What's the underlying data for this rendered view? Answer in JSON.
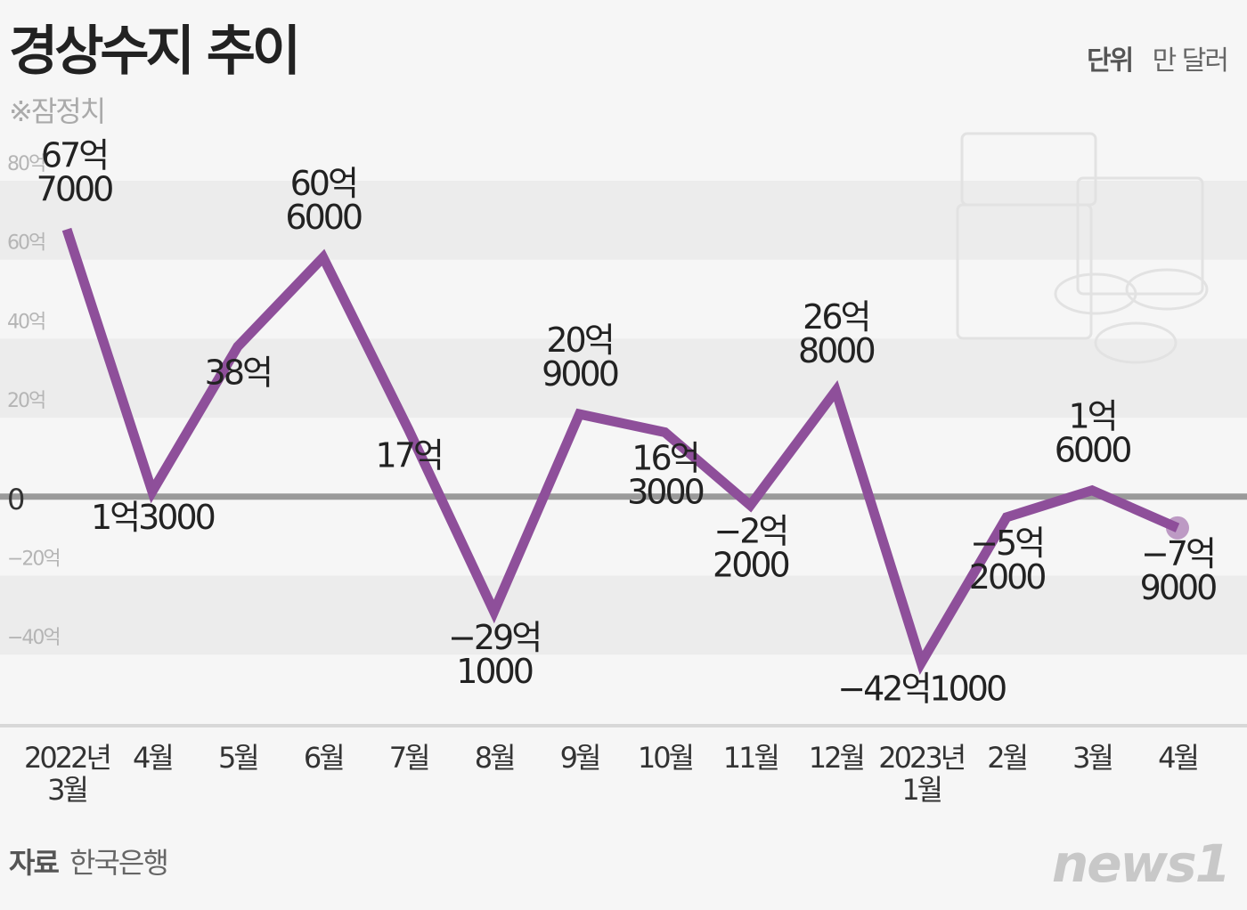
{
  "chart_data": {
    "type": "line",
    "title": "경상수지 추이",
    "note": "※잠정치",
    "unit_label": "단위",
    "unit": "만 달러",
    "source_label": "자료",
    "source": "한국은행",
    "logo": "news1",
    "categories": [
      "2022년\n3월",
      "4월",
      "5월",
      "6월",
      "7월",
      "8월",
      "9월",
      "10월",
      "11월",
      "12월",
      "2023년\n1월",
      "2월",
      "3월",
      "4월"
    ],
    "series": [
      {
        "name": "경상수지",
        "color": "#8e4f9a",
        "values": [
          67.7,
          1.3,
          38,
          60.6,
          17,
          -29.1,
          20.9,
          16.3,
          -2.2,
          26.8,
          -42.1,
          -5.2,
          1.6,
          -7.9
        ],
        "value_labels": [
          "67억\n7000",
          "1억3000",
          "38억",
          "60억\n6000",
          "17억",
          "−29억\n1000",
          "20억\n9000",
          "16억\n3000",
          "−2억\n2000",
          "26억\n8000",
          "−42억1000",
          "−5억\n2000",
          "1억\n6000",
          "−7억\n9000"
        ]
      }
    ],
    "ylim": [
      -58,
      80
    ],
    "yticks": [
      {
        "value": 80,
        "label": "80억"
      },
      {
        "value": 60,
        "label": "60억"
      },
      {
        "value": 40,
        "label": "40억"
      },
      {
        "value": 20,
        "label": "20억"
      },
      0,
      {
        "value": -20,
        "label": "−20억"
      },
      {
        "value": -40,
        "label": "−40억"
      }
    ]
  }
}
